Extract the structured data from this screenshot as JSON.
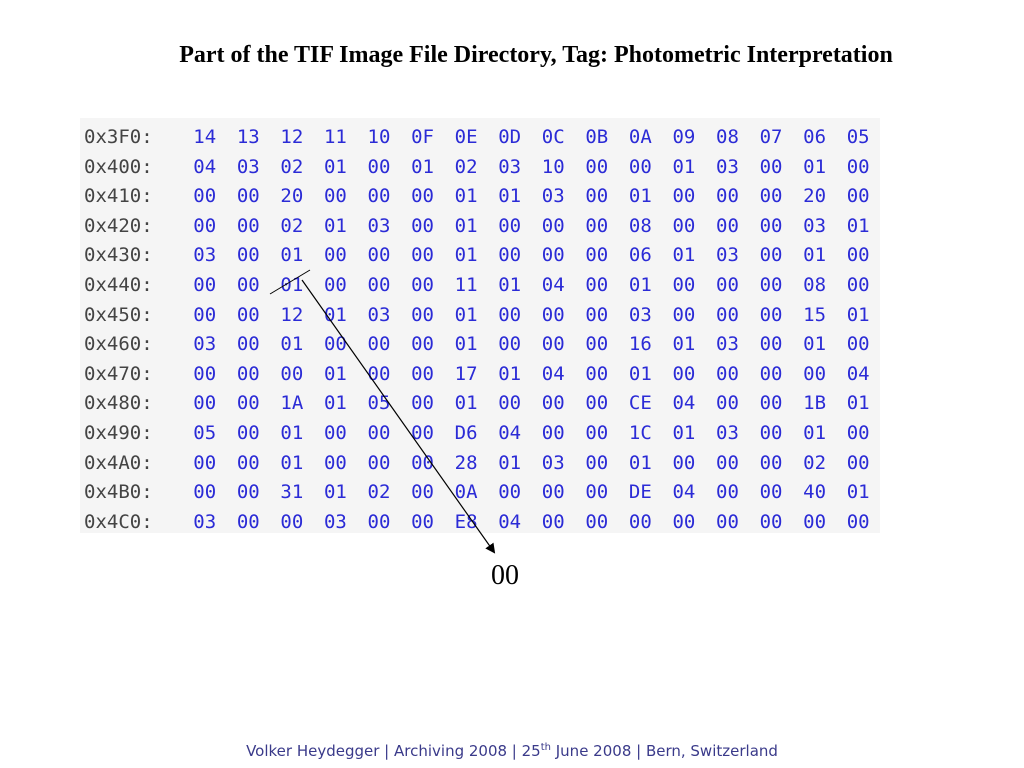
{
  "title": "Part of the TIF Image File Directory, Tag: Photometric Interpretation",
  "hex_dump": {
    "rows": [
      {
        "address": "0x3F0:",
        "bytes": [
          "14",
          "13",
          "12",
          "11",
          "10",
          "0F",
          "0E",
          "0D",
          "0C",
          "0B",
          "0A",
          "09",
          "08",
          "07",
          "06",
          "05"
        ]
      },
      {
        "address": "0x400:",
        "bytes": [
          "04",
          "03",
          "02",
          "01",
          "00",
          "01",
          "02",
          "03",
          "10",
          "00",
          "00",
          "01",
          "03",
          "00",
          "01",
          "00"
        ]
      },
      {
        "address": "0x410:",
        "bytes": [
          "00",
          "00",
          "20",
          "00",
          "00",
          "00",
          "01",
          "01",
          "03",
          "00",
          "01",
          "00",
          "00",
          "00",
          "20",
          "00"
        ]
      },
      {
        "address": "0x420:",
        "bytes": [
          "00",
          "00",
          "02",
          "01",
          "03",
          "00",
          "01",
          "00",
          "00",
          "00",
          "08",
          "00",
          "00",
          "00",
          "03",
          "01"
        ]
      },
      {
        "address": "0x430:",
        "bytes": [
          "03",
          "00",
          "01",
          "00",
          "00",
          "00",
          "01",
          "00",
          "00",
          "00",
          "06",
          "01",
          "03",
          "00",
          "01",
          "00"
        ]
      },
      {
        "address": "0x440:",
        "bytes": [
          "00",
          "00",
          "01",
          "00",
          "00",
          "00",
          "11",
          "01",
          "04",
          "00",
          "01",
          "00",
          "00",
          "00",
          "08",
          "00"
        ]
      },
      {
        "address": "0x450:",
        "bytes": [
          "00",
          "00",
          "12",
          "01",
          "03",
          "00",
          "01",
          "00",
          "00",
          "00",
          "03",
          "00",
          "00",
          "00",
          "15",
          "01"
        ]
      },
      {
        "address": "0x460:",
        "bytes": [
          "03",
          "00",
          "01",
          "00",
          "00",
          "00",
          "01",
          "00",
          "00",
          "00",
          "16",
          "01",
          "03",
          "00",
          "01",
          "00"
        ]
      },
      {
        "address": "0x470:",
        "bytes": [
          "00",
          "00",
          "00",
          "01",
          "00",
          "00",
          "17",
          "01",
          "04",
          "00",
          "01",
          "00",
          "00",
          "00",
          "00",
          "04"
        ]
      },
      {
        "address": "0x480:",
        "bytes": [
          "00",
          "00",
          "1A",
          "01",
          "05",
          "00",
          "01",
          "00",
          "00",
          "00",
          "CE",
          "04",
          "00",
          "00",
          "1B",
          "01"
        ]
      },
      {
        "address": "0x490:",
        "bytes": [
          "05",
          "00",
          "01",
          "00",
          "00",
          "00",
          "D6",
          "04",
          "00",
          "00",
          "1C",
          "01",
          "03",
          "00",
          "01",
          "00"
        ]
      },
      {
        "address": "0x4A0:",
        "bytes": [
          "00",
          "00",
          "01",
          "00",
          "00",
          "00",
          "28",
          "01",
          "03",
          "00",
          "01",
          "00",
          "00",
          "00",
          "02",
          "00"
        ]
      },
      {
        "address": "0x4B0:",
        "bytes": [
          "00",
          "00",
          "31",
          "01",
          "02",
          "00",
          "0A",
          "00",
          "00",
          "00",
          "DE",
          "04",
          "00",
          "00",
          "40",
          "01"
        ]
      },
      {
        "address": "0x4C0:",
        "bytes": [
          "03",
          "00",
          "00",
          "03",
          "00",
          "00",
          "E8",
          "04",
          "00",
          "00",
          "00",
          "00",
          "00",
          "00",
          "00",
          "00"
        ]
      }
    ]
  },
  "annotation": {
    "result_value": "00"
  },
  "footer": {
    "prefix": "Volker Heydegger |  Archiving 2008 | 25",
    "superscript": "th",
    "suffix": " June 2008 | Bern, Switzerland"
  },
  "colors": {
    "byte_text": "#2b2bd6",
    "address_text": "#444444",
    "panel_background": "#f5f5f5",
    "footer_text": "#3a3a8a"
  }
}
